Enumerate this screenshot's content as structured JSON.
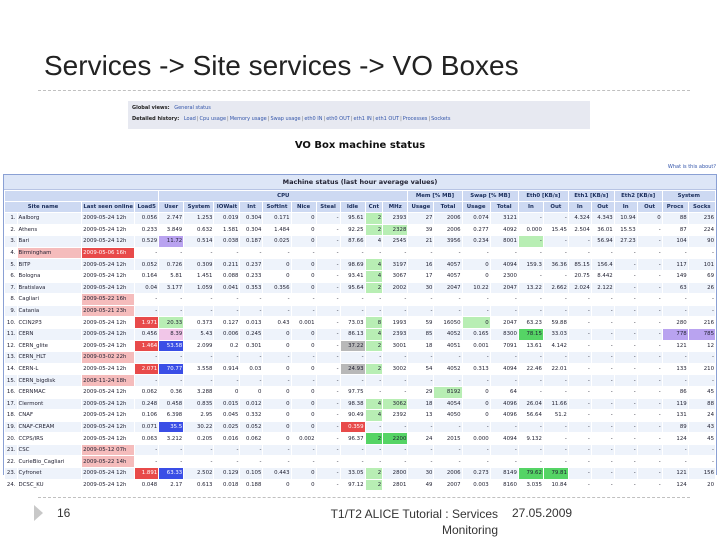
{
  "slide": {
    "title": "Services -> Site services -> VO Boxes",
    "page_number": "16",
    "footer_title": "T1/T2 ALICE Tutorial : Services Monitoring",
    "footer_date": "27.05.2009"
  },
  "screenshot": {
    "nav": {
      "global_label": "Global views:",
      "global_link": "General status",
      "detailed_label": "Detailed history:",
      "detailed_links": [
        "Load",
        "Cpu usage",
        "Memory usage",
        "Swap usage",
        "eth0 IN",
        "eth0 OUT",
        "eth1 IN",
        "eth1 OUT",
        "Processes",
        "Sockets"
      ]
    },
    "heading": "VO Box machine status",
    "what_link": "What is this about?",
    "table_title": "Machine status (last hour average values)",
    "group_headers": [
      "CPU",
      "Mem [% MB]",
      "Swap [% MB]",
      "Eth0 [KB/s]",
      "Eth1 [KB/s]",
      "Eth2 [KB/s]",
      "System"
    ],
    "columns": [
      "Site name",
      "Last seen online",
      "Load5",
      "User",
      "System",
      "IOWait",
      "Int",
      "SoftInt",
      "Nice",
      "Steal",
      "Idle",
      "Cnt",
      "MHz",
      "Usage",
      "Total",
      "Usage",
      "Total",
      "In",
      "Out",
      "In",
      "Out",
      "In",
      "Out",
      "Procs",
      "Socks"
    ],
    "rows": [
      {
        "n": "1.",
        "site": "Aalborg",
        "seen": "2009-05-24 12h",
        "v": [
          "0.056",
          "2.747",
          "1.253",
          "0.019",
          "0.304",
          "0.171",
          "0",
          "-",
          "95.61",
          "2",
          "2393",
          "27",
          "2006",
          "0.074",
          "3121",
          "-",
          "-",
          "4.324",
          "4.343",
          "10.94",
          "0",
          "88",
          "236"
        ]
      },
      {
        "n": "2.",
        "site": "Athens",
        "seen": "2009-05-24 12h",
        "v": [
          "0.233",
          "3.849",
          "0.632",
          "1.581",
          "0.304",
          "1.484",
          "0",
          "-",
          "92.25",
          "2",
          "2328",
          "39",
          "2006",
          "0.277",
          "4092",
          "0.000",
          "15.45",
          "2.504",
          "36.01",
          "15.53",
          "-",
          "87",
          "224"
        ]
      },
      {
        "n": "3.",
        "site": "Bari",
        "seen": "2009-05-24 12h",
        "v": [
          "0.529",
          "11.72",
          "0.514",
          "0.038",
          "0.187",
          "0.025",
          "0",
          "-",
          "87.66",
          "4",
          "2545",
          "21",
          "3956",
          "0.234",
          "8001",
          "-",
          "-",
          "-",
          "56.94",
          "27.23",
          "-",
          "104",
          "90"
        ]
      },
      {
        "n": "4.",
        "site": "Birmingham",
        "seen": "2009-05-06 16h",
        "v": [
          "-",
          "-",
          "-",
          "-",
          "-",
          "-",
          "-",
          "-",
          "-",
          "-",
          "-",
          "-",
          "-",
          "-",
          "-",
          "-",
          "-",
          "-",
          "-",
          "-",
          "-",
          "-",
          "-"
        ]
      },
      {
        "n": "5.",
        "site": "BITP",
        "seen": "2009-05-24 12h",
        "v": [
          "0.052",
          "0.726",
          "0.309",
          "0.211",
          "0.237",
          "0",
          "0",
          "-",
          "98.69",
          "4",
          "3197",
          "16",
          "4057",
          "0",
          "4094",
          "159.3",
          "36.36",
          "85.15",
          "156.4",
          "-",
          "-",
          "117",
          "101"
        ]
      },
      {
        "n": "6.",
        "site": "Bologna",
        "seen": "2009-05-24 12h",
        "v": [
          "0.164",
          "5.81",
          "1.451",
          "0.088",
          "0.233",
          "0",
          "0",
          "-",
          "93.41",
          "4",
          "3067",
          "17",
          "4057",
          "0",
          "2300",
          "-",
          "-",
          "20.75",
          "8.442",
          "-",
          "-",
          "149",
          "69"
        ]
      },
      {
        "n": "7.",
        "site": "Bratislava",
        "seen": "2009-05-24 12h",
        "v": [
          "0.04",
          "3.177",
          "1.059",
          "0.041",
          "0.353",
          "0.356",
          "0",
          "-",
          "95.64",
          "2",
          "2002",
          "30",
          "2047",
          "10.22",
          "2047",
          "13.22",
          "2.662",
          "2.024",
          "2.122",
          "-",
          "-",
          "63",
          "26"
        ]
      },
      {
        "n": "8.",
        "site": "Cagliari",
        "seen": "2009-05-22 16h",
        "v": [
          "-",
          "-",
          "-",
          "-",
          "-",
          "-",
          "-",
          "-",
          "-",
          "-",
          "-",
          "-",
          "-",
          "-",
          "-",
          "-",
          "-",
          "-",
          "-",
          "-",
          "-",
          "-",
          "-"
        ]
      },
      {
        "n": "9.",
        "site": "Catania",
        "seen": "2009-05-21 23h",
        "v": [
          "-",
          "-",
          "-",
          "-",
          "-",
          "-",
          "-",
          "-",
          "-",
          "-",
          "-",
          "-",
          "-",
          "-",
          "-",
          "-",
          "-",
          "-",
          "-",
          "-",
          "-",
          "-",
          "-"
        ]
      },
      {
        "n": "10.",
        "site": "CCIN2P3",
        "seen": "2009-05-24 12h",
        "v": [
          "1.971",
          "20.33",
          "0.373",
          "0.127",
          "0.013",
          "0.43",
          "0.001",
          "-",
          "73.03",
          "8",
          "1993",
          "59",
          "16050",
          "0",
          "2047",
          "63.23",
          "59.88",
          "-",
          "-",
          "-",
          "-",
          "280",
          "216"
        ]
      },
      {
        "n": "11.",
        "site": "CERN",
        "seen": "2009-05-24 12h",
        "v": [
          "0.456",
          "8.39",
          "5.43",
          "0.006",
          "0.245",
          "0",
          "0",
          "-",
          "86.13",
          "4",
          "2393",
          "85",
          "4052",
          "0.165",
          "8300",
          "78.15",
          "33.03",
          "-",
          "-",
          "-",
          "-",
          "778",
          "785"
        ]
      },
      {
        "n": "12.",
        "site": "CERN_glite",
        "seen": "2009-05-24 12h",
        "v": [
          "1.464",
          "53.58",
          "2.099",
          "0.2",
          "0.301",
          "0",
          "0",
          "-",
          "37.22",
          "2",
          "3001",
          "18",
          "4051",
          "0.001",
          "7091",
          "13.61",
          "4.142",
          "-",
          "-",
          "-",
          "-",
          "121",
          "12"
        ]
      },
      {
        "n": "13.",
        "site": "CERN_HLT",
        "seen": "2009-03-02 22h",
        "v": [
          "-",
          "-",
          "-",
          "-",
          "-",
          "-",
          "-",
          "-",
          "-",
          "-",
          "-",
          "-",
          "-",
          "-",
          "-",
          "-",
          "-",
          "-",
          "-",
          "-",
          "-",
          "-",
          "-"
        ]
      },
      {
        "n": "14.",
        "site": "CERN-L",
        "seen": "2009-05-24 12h",
        "v": [
          "2.071",
          "70.77",
          "3.558",
          "0.914",
          "0.03",
          "0",
          "0",
          "-",
          "24.93",
          "2",
          "3002",
          "54",
          "4052",
          "0.313",
          "4094",
          "22.46",
          "22.01",
          "-",
          "-",
          "-",
          "-",
          "133",
          "210"
        ]
      },
      {
        "n": "15.",
        "site": "CERN_bigdisk",
        "seen": "2008-11-24 18h",
        "v": [
          "-",
          "-",
          "-",
          "-",
          "-",
          "-",
          "-",
          "-",
          "-",
          "-",
          "-",
          "-",
          "-",
          "-",
          "-",
          "-",
          "-",
          "-",
          "-",
          "-",
          "-",
          "-",
          "-"
        ]
      },
      {
        "n": "16.",
        "site": "CERNMAC",
        "seen": "2009-05-24 12h",
        "v": [
          "0.062",
          "0.36",
          "3.288",
          "0",
          "0",
          "0",
          "0",
          "-",
          "97.75",
          "-",
          "-",
          "29",
          "8192",
          "0",
          "64",
          "-",
          "-",
          "-",
          "-",
          "-",
          "-",
          "86",
          "45"
        ]
      },
      {
        "n": "17.",
        "site": "Clermont",
        "seen": "2009-05-24 12h",
        "v": [
          "0.248",
          "0.458",
          "0.835",
          "0.015",
          "0.012",
          "0",
          "0",
          "-",
          "98.38",
          "4",
          "3062",
          "18",
          "4054",
          "0",
          "4096",
          "26.04",
          "11.66",
          "-",
          "-",
          "-",
          "-",
          "119",
          "88"
        ]
      },
      {
        "n": "18.",
        "site": "CNAF",
        "seen": "2009-05-24 12h",
        "v": [
          "0.106",
          "6.398",
          "2.95",
          "0.045",
          "0.332",
          "0",
          "0",
          "-",
          "90.49",
          "4",
          "2392",
          "13",
          "4050",
          "0",
          "4096",
          "56.64",
          "51.2",
          "-",
          "-",
          "-",
          "-",
          "131",
          "24"
        ]
      },
      {
        "n": "19.",
        "site": "CNAF-CREAM",
        "seen": "2009-05-24 12h",
        "v": [
          "0.071",
          "35.5",
          "30.22",
          "0.025",
          "0.052",
          "0",
          "0",
          "-",
          "0.359",
          "-",
          "-",
          "-",
          "-",
          "-",
          "-",
          "-",
          "-",
          "-",
          "-",
          "-",
          "-",
          "89",
          "43"
        ]
      },
      {
        "n": "20.",
        "site": "CCPS/IRS",
        "seen": "2009-05-24 12h",
        "v": [
          "0.063",
          "3.212",
          "0.205",
          "0.016",
          "0.062",
          "0",
          "0.002",
          "-",
          "96.37",
          "2",
          "2200",
          "24",
          "2015",
          "0.000",
          "4094",
          "9.132",
          "-",
          "-",
          "-",
          "-",
          "-",
          "124",
          "45"
        ]
      },
      {
        "n": "21.",
        "site": "CSC",
        "seen": "2009-05-12 07h",
        "v": [
          "-",
          "-",
          "-",
          "-",
          "-",
          "-",
          "-",
          "-",
          "-",
          "-",
          "-",
          "-",
          "-",
          "-",
          "-",
          "-",
          "-",
          "-",
          "-",
          "-",
          "-",
          "-",
          "-"
        ]
      },
      {
        "n": "22.",
        "site": "CurieBio_Cagliari",
        "seen": "2009-05-22 14h",
        "v": [
          "-",
          "-",
          "-",
          "-",
          "-",
          "-",
          "-",
          "-",
          "-",
          "-",
          "-",
          "-",
          "-",
          "-",
          "-",
          "-",
          "-",
          "-",
          "-",
          "-",
          "-",
          "-",
          "-"
        ]
      },
      {
        "n": "23.",
        "site": "Cyfronet",
        "seen": "2009-05-24 12h",
        "v": [
          "1.891",
          "63.33",
          "2.502",
          "0.129",
          "0.105",
          "0.443",
          "0",
          "-",
          "33.05",
          "2",
          "2800",
          "30",
          "2006",
          "0.273",
          "8149",
          "79.62",
          "79.81",
          "-",
          "-",
          "-",
          "-",
          "121",
          "156"
        ]
      },
      {
        "n": "24.",
        "site": "DCSC_KU",
        "seen": "2009-05-24 12h",
        "v": [
          "0.048",
          "2.17",
          "0.613",
          "0.018",
          "0.188",
          "0",
          "0",
          "-",
          "97.12",
          "2",
          "2801",
          "49",
          "2007",
          "0.003",
          "8160",
          "3.035",
          "10.84",
          "-",
          "-",
          "-",
          "-",
          "124",
          "20"
        ]
      }
    ]
  }
}
